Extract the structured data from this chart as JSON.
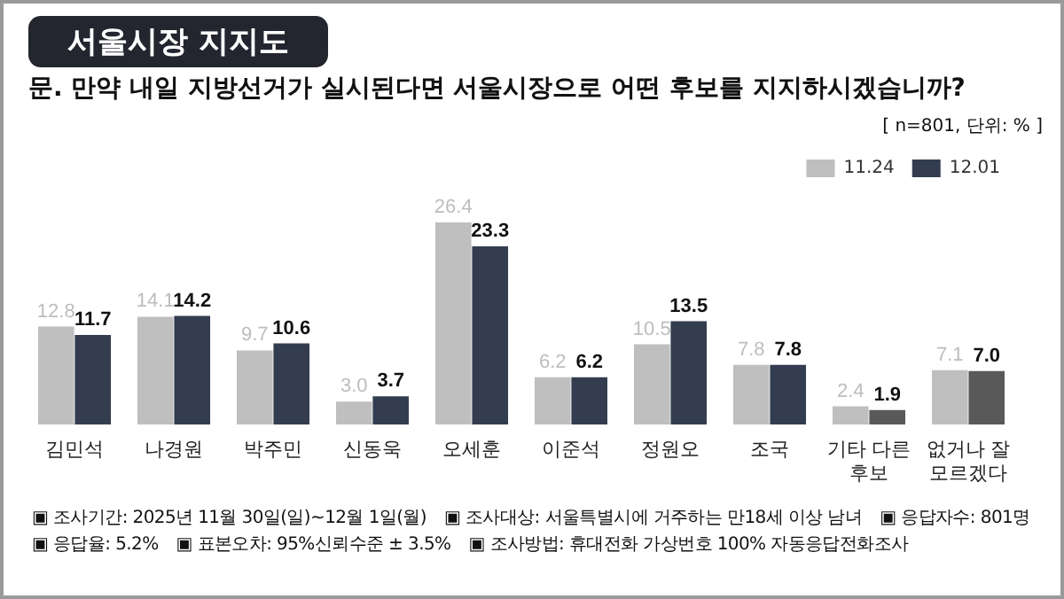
{
  "chart_data": {
    "type": "bar",
    "title": "서울시장 지지도",
    "subtitle": "문. 만약 내일 지방선거가 실시된다면 서울시장으로 어떤 후보를 지지하시겠습니까?",
    "categories": [
      "김민석",
      "나경원",
      "박주민",
      "신동욱",
      "오세훈",
      "이준석",
      "정원오",
      "조국",
      "기타 다른 후보",
      "없거나 잘 모르겠다"
    ],
    "series": [
      {
        "name": "11.24",
        "color": "#bfbfbf",
        "values": [
          12.8,
          14.1,
          9.7,
          3.0,
          26.4,
          6.2,
          10.5,
          7.8,
          2.4,
          7.1
        ],
        "value_labels": [
          "12.8",
          "14.1",
          "9.7",
          "3.0",
          "26.4",
          "6.2",
          "10.5",
          "7.8",
          "2.4",
          "7.1"
        ]
      },
      {
        "name": "12.01",
        "color": "#333d4f",
        "colors": [
          "#333d4f",
          "#333d4f",
          "#333d4f",
          "#333d4f",
          "#333d4f",
          "#333d4f",
          "#333d4f",
          "#333d4f",
          "#595959",
          "#595959"
        ],
        "values": [
          11.7,
          14.2,
          10.6,
          3.7,
          23.3,
          6.2,
          13.5,
          7.8,
          1.9,
          7.0
        ],
        "value_labels": [
          "11.7",
          "14.2",
          "10.6",
          "3.7",
          "23.3",
          "6.2",
          "13.5",
          "7.8",
          "1.9",
          "7.0"
        ]
      }
    ],
    "tick_labels": "x",
    "legend": "top right",
    "grid": false,
    "annotations": [
      "[ n=801, 단위: % ]",
      "▣ 조사기간: 2025년 11월 30일(일)~12월 1일(월)",
      "▣ 조사대상: 서울특별시에 거주하는 만18세 이상 남녀",
      "▣ 응답자수: 801명",
      "▣ 응답율: 5.2%",
      "▣ 표본오차: 95%신뢰수준 ± 3.5%",
      "▣ 조사방법: 휴대전화 가상번호 100% 자동응답전화조사"
    ]
  }
}
